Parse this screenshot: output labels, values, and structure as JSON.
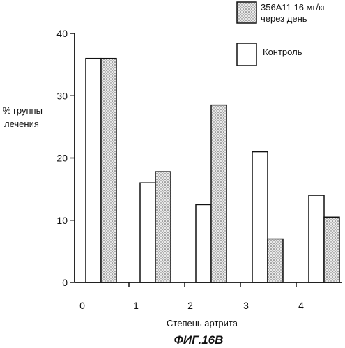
{
  "chart_data": {
    "type": "bar",
    "title": "",
    "xlabel": "Степень артрита",
    "ylabel_lines": [
      "% группы",
      "лечения"
    ],
    "categories": [
      "0",
      "1",
      "2",
      "3",
      "4"
    ],
    "series": [
      {
        "name": "Контроль",
        "values": [
          36,
          16,
          12.5,
          21,
          14
        ],
        "pattern": "plain"
      },
      {
        "name_lines": [
          "356A11 16 мг/кг",
          "через день"
        ],
        "values": [
          36,
          17.8,
          28.5,
          7,
          10.5
        ],
        "pattern": "stipple"
      }
    ],
    "ylim": [
      0,
      40
    ],
    "yticks": [
      0,
      10,
      20,
      30,
      40
    ],
    "grid": false,
    "legend_position": "top-right"
  },
  "caption": "ФИГ.16В",
  "colors": {
    "ink": "#111111",
    "plain_fill": "#ffffff",
    "stipple_bg": "#e9e9e9",
    "stipple_dot": "#555555"
  }
}
